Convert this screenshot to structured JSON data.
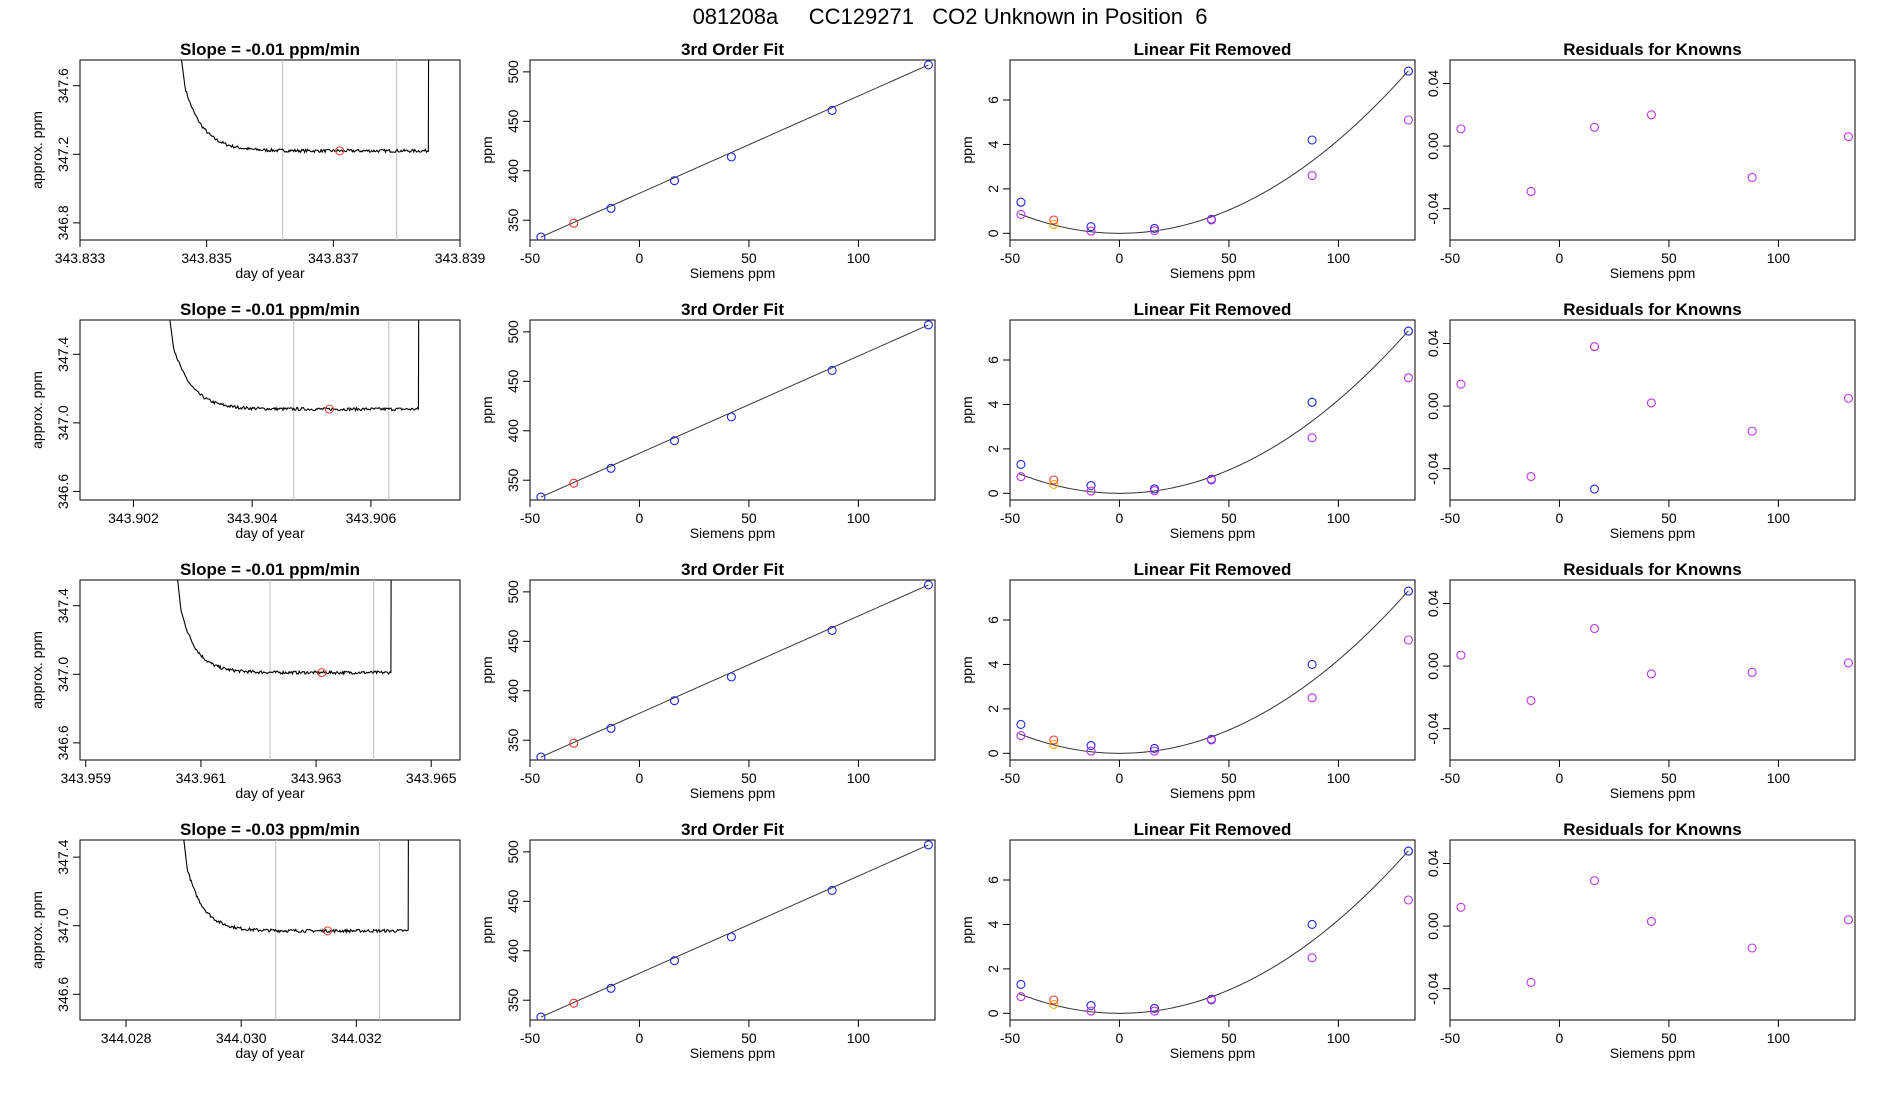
{
  "title": "081208a     CC129271   CO2 Unknown in Position  6",
  "colors": {
    "trace": "#000000",
    "axis": "#000000",
    "vline": "#bebebe",
    "red": "#e8392a",
    "orange": "#ffa500",
    "blue": "#2222dd",
    "magenta": "#bb33ee",
    "fit": "#333333"
  },
  "chart_data": [
    {
      "type": "line",
      "panel": "trace",
      "row": 1,
      "title": "Slope =  -0.01  ppm/min",
      "xlabel": "day of year",
      "ylabel": "approx. ppm",
      "xlim": [
        343.833,
        343.839
      ],
      "ylim": [
        346.7,
        347.75
      ],
      "xticks": [
        "343.833",
        "343.835",
        "343.837",
        "343.839"
      ],
      "yticks": [
        "346.8",
        "347.2",
        "347.6"
      ],
      "plateau": 347.22,
      "x_start": 343.8345,
      "x_rise": 343.8385,
      "vlines": [
        343.8362,
        343.838
      ],
      "mean_point": [
        343.8371,
        347.22
      ]
    },
    {
      "type": "line",
      "panel": "fit",
      "row": 1,
      "title": "3rd Order Fit",
      "xlabel": "Siemens ppm",
      "ylabel": "ppm",
      "xlim": [
        -50,
        135
      ],
      "ylim": [
        330,
        512
      ],
      "xticks": [
        -50,
        0,
        50,
        100
      ],
      "yticks": [
        350,
        400,
        450,
        500
      ],
      "points": [
        [
          -45,
          333,
          "blue"
        ],
        [
          -30,
          347,
          "red"
        ],
        [
          -13,
          362,
          "blue"
        ],
        [
          16,
          390,
          "blue"
        ],
        [
          42,
          414,
          "blue"
        ],
        [
          88,
          461,
          "blue"
        ],
        [
          132,
          507,
          "blue"
        ]
      ]
    },
    {
      "type": "scatter",
      "panel": "linrem",
      "row": 1,
      "title": "Linear Fit Removed",
      "xlabel": "Siemens ppm",
      "ylabel": "ppm",
      "xlim": [
        -50,
        135
      ],
      "ylim": [
        -0.3,
        7.8
      ],
      "xticks": [
        -50,
        0,
        50,
        100
      ],
      "yticks": [
        0,
        2,
        4,
        6
      ],
      "points": [
        [
          -45,
          1.4,
          "blue"
        ],
        [
          -45,
          0.85,
          "magenta"
        ],
        [
          -30,
          0.6,
          "red"
        ],
        [
          -30,
          0.4,
          "orange"
        ],
        [
          -13,
          0.3,
          "blue"
        ],
        [
          -13,
          0.1,
          "magenta"
        ],
        [
          16,
          0.22,
          "blue"
        ],
        [
          16,
          0.12,
          "magenta"
        ],
        [
          42,
          0.63,
          "blue"
        ],
        [
          42,
          0.6,
          "magenta"
        ],
        [
          88,
          4.2,
          "blue"
        ],
        [
          88,
          2.6,
          "magenta"
        ],
        [
          132,
          7.3,
          "blue"
        ],
        [
          132,
          5.1,
          "magenta"
        ]
      ],
      "curve_coef": 0.00042
    },
    {
      "type": "scatter",
      "panel": "resid",
      "row": 1,
      "title": "Residuals for Knowns",
      "xlabel": "Siemens ppm",
      "ylabel": "",
      "xlim": [
        -50,
        135
      ],
      "ylim": [
        -0.06,
        0.055
      ],
      "xticks": [
        -50,
        0,
        50,
        100
      ],
      "yticks": [
        "-0.04",
        "0.00",
        "0.04"
      ],
      "points": [
        [
          -45,
          0.011,
          "magenta"
        ],
        [
          -13,
          -0.029,
          "magenta"
        ],
        [
          16,
          0.012,
          "magenta"
        ],
        [
          42,
          0.02,
          "magenta"
        ],
        [
          88,
          -0.02,
          "magenta"
        ],
        [
          132,
          0.006,
          "magenta"
        ]
      ]
    },
    {
      "type": "line",
      "panel": "trace",
      "row": 2,
      "title": "Slope =  -0.01  ppm/min",
      "xlabel": "day of year",
      "ylabel": "approx. ppm",
      "xlim": [
        343.9011,
        343.9075
      ],
      "ylim": [
        346.55,
        347.6
      ],
      "xticks": [
        "343.902",
        "343.904",
        "343.906"
      ],
      "yticks": [
        "346.6",
        "347.0",
        "347.4"
      ],
      "plateau": 347.08,
      "x_start": 343.9025,
      "x_rise": 343.9068,
      "vlines": [
        343.9047,
        343.9063
      ],
      "mean_point": [
        343.9053,
        347.08
      ]
    },
    {
      "type": "line",
      "panel": "fit",
      "row": 2,
      "title": "3rd Order Fit",
      "xlabel": "Siemens ppm",
      "ylabel": "ppm",
      "xlim": [
        -50,
        135
      ],
      "ylim": [
        330,
        512
      ],
      "xticks": [
        -50,
        0,
        50,
        100
      ],
      "yticks": [
        350,
        400,
        450,
        500
      ],
      "points": [
        [
          -45,
          333,
          "blue"
        ],
        [
          -30,
          347,
          "red"
        ],
        [
          -13,
          362,
          "blue"
        ],
        [
          16,
          390,
          "blue"
        ],
        [
          42,
          414,
          "blue"
        ],
        [
          88,
          461,
          "blue"
        ],
        [
          132,
          507,
          "blue"
        ]
      ]
    },
    {
      "type": "scatter",
      "panel": "linrem",
      "row": 2,
      "title": "Linear Fit Removed",
      "xlabel": "Siemens ppm",
      "ylabel": "ppm",
      "xlim": [
        -50,
        135
      ],
      "ylim": [
        -0.3,
        7.8
      ],
      "xticks": [
        -50,
        0,
        50,
        100
      ],
      "yticks": [
        0,
        2,
        4,
        6
      ],
      "points": [
        [
          -45,
          1.3,
          "blue"
        ],
        [
          -45,
          0.75,
          "magenta"
        ],
        [
          -30,
          0.6,
          "red"
        ],
        [
          -30,
          0.4,
          "orange"
        ],
        [
          -13,
          0.35,
          "blue"
        ],
        [
          -13,
          0.1,
          "magenta"
        ],
        [
          16,
          0.2,
          "blue"
        ],
        [
          16,
          0.12,
          "magenta"
        ],
        [
          42,
          0.63,
          "blue"
        ],
        [
          42,
          0.6,
          "magenta"
        ],
        [
          88,
          4.1,
          "blue"
        ],
        [
          88,
          2.5,
          "magenta"
        ],
        [
          132,
          7.3,
          "blue"
        ],
        [
          132,
          5.2,
          "magenta"
        ]
      ],
      "curve_coef": 0.00042
    },
    {
      "type": "scatter",
      "panel": "resid",
      "row": 2,
      "title": "Residuals for Knowns",
      "xlabel": "Siemens ppm",
      "ylabel": "",
      "xlim": [
        -50,
        135
      ],
      "ylim": [
        -0.06,
        0.055
      ],
      "xticks": [
        -50,
        0,
        50,
        100
      ],
      "yticks": [
        "-0.04",
        "0.00",
        "0.04"
      ],
      "points": [
        [
          -45,
          0.014,
          "magenta"
        ],
        [
          -13,
          -0.045,
          "magenta"
        ],
        [
          16,
          0.038,
          "magenta"
        ],
        [
          16,
          -0.053,
          "blue"
        ],
        [
          42,
          0.002,
          "magenta"
        ],
        [
          88,
          -0.016,
          "magenta"
        ],
        [
          132,
          0.005,
          "magenta"
        ]
      ]
    },
    {
      "type": "line",
      "panel": "trace",
      "row": 3,
      "title": "Slope =  -0.01  ppm/min",
      "xlabel": "day of year",
      "ylabel": "approx. ppm",
      "xlim": [
        343.9589,
        343.9655
      ],
      "ylim": [
        346.5,
        347.55
      ],
      "xticks": [
        "343.959",
        "343.961",
        "343.963",
        "343.965"
      ],
      "yticks": [
        "346.6",
        "347.0",
        "347.4"
      ],
      "plateau": 347.01,
      "x_start": 343.9605,
      "x_rise": 343.9643,
      "vlines": [
        343.9622,
        343.964
      ],
      "mean_point": [
        343.9631,
        347.01
      ]
    },
    {
      "type": "line",
      "panel": "fit",
      "row": 3,
      "title": "3rd Order Fit",
      "xlabel": "Siemens ppm",
      "ylabel": "ppm",
      "xlim": [
        -50,
        135
      ],
      "ylim": [
        330,
        512
      ],
      "xticks": [
        -50,
        0,
        50,
        100
      ],
      "yticks": [
        350,
        400,
        450,
        500
      ],
      "points": [
        [
          -45,
          333,
          "blue"
        ],
        [
          -30,
          347,
          "red"
        ],
        [
          -13,
          362,
          "blue"
        ],
        [
          16,
          390,
          "blue"
        ],
        [
          42,
          414,
          "blue"
        ],
        [
          88,
          461,
          "blue"
        ],
        [
          132,
          507,
          "blue"
        ]
      ]
    },
    {
      "type": "scatter",
      "panel": "linrem",
      "row": 3,
      "title": "Linear Fit Removed",
      "xlabel": "Siemens ppm",
      "ylabel": "ppm",
      "xlim": [
        -50,
        135
      ],
      "ylim": [
        -0.3,
        7.8
      ],
      "xticks": [
        -50,
        0,
        50,
        100
      ],
      "yticks": [
        0,
        2,
        4,
        6
      ],
      "points": [
        [
          -45,
          1.3,
          "blue"
        ],
        [
          -45,
          0.8,
          "magenta"
        ],
        [
          -30,
          0.6,
          "red"
        ],
        [
          -30,
          0.4,
          "orange"
        ],
        [
          -13,
          0.35,
          "blue"
        ],
        [
          -13,
          0.1,
          "magenta"
        ],
        [
          16,
          0.22,
          "blue"
        ],
        [
          16,
          0.1,
          "magenta"
        ],
        [
          42,
          0.63,
          "blue"
        ],
        [
          42,
          0.6,
          "magenta"
        ],
        [
          88,
          4.0,
          "blue"
        ],
        [
          88,
          2.5,
          "magenta"
        ],
        [
          132,
          7.3,
          "blue"
        ],
        [
          132,
          5.1,
          "magenta"
        ]
      ],
      "curve_coef": 0.00042
    },
    {
      "type": "scatter",
      "panel": "resid",
      "row": 3,
      "title": "Residuals for Knowns",
      "xlabel": "Siemens ppm",
      "ylabel": "",
      "xlim": [
        -50,
        135
      ],
      "ylim": [
        -0.06,
        0.055
      ],
      "xticks": [
        -50,
        0,
        50,
        100
      ],
      "yticks": [
        "-0.04",
        "0.00",
        "0.04"
      ],
      "points": [
        [
          -45,
          0.007,
          "magenta"
        ],
        [
          -13,
          -0.022,
          "magenta"
        ],
        [
          16,
          0.024,
          "magenta"
        ],
        [
          42,
          -0.005,
          "magenta"
        ],
        [
          88,
          -0.004,
          "magenta"
        ],
        [
          132,
          0.002,
          "magenta"
        ]
      ]
    },
    {
      "type": "line",
      "panel": "trace",
      "row": 4,
      "title": "Slope =  -0.03  ppm/min",
      "xlabel": "day of year",
      "ylabel": "approx. ppm",
      "xlim": [
        344.0272,
        344.0338
      ],
      "ylim": [
        346.45,
        347.5
      ],
      "xticks": [
        "344.028",
        "344.030",
        "344.032"
      ],
      "yticks": [
        "346.6",
        "347.0",
        "347.4"
      ],
      "plateau": 346.97,
      "x_start": 344.0289,
      "x_rise": 344.0329,
      "vlines": [
        344.0306,
        344.0324
      ],
      "mean_point": [
        344.0315,
        346.97
      ]
    },
    {
      "type": "line",
      "panel": "fit",
      "row": 4,
      "title": "3rd Order Fit",
      "xlabel": "Siemens ppm",
      "ylabel": "ppm",
      "xlim": [
        -50,
        135
      ],
      "ylim": [
        330,
        512
      ],
      "xticks": [
        -50,
        0,
        50,
        100
      ],
      "yticks": [
        350,
        400,
        450,
        500
      ],
      "points": [
        [
          -45,
          333,
          "blue"
        ],
        [
          -30,
          347,
          "red"
        ],
        [
          -13,
          362,
          "blue"
        ],
        [
          16,
          390,
          "blue"
        ],
        [
          42,
          414,
          "blue"
        ],
        [
          88,
          461,
          "blue"
        ],
        [
          132,
          507,
          "blue"
        ]
      ]
    },
    {
      "type": "scatter",
      "panel": "linrem",
      "row": 4,
      "title": "Linear Fit Removed",
      "xlabel": "Siemens ppm",
      "ylabel": "ppm",
      "xlim": [
        -50,
        135
      ],
      "ylim": [
        -0.3,
        7.8
      ],
      "xticks": [
        -50,
        0,
        50,
        100
      ],
      "yticks": [
        0,
        2,
        4,
        6
      ],
      "points": [
        [
          -45,
          1.3,
          "blue"
        ],
        [
          -45,
          0.75,
          "magenta"
        ],
        [
          -30,
          0.6,
          "red"
        ],
        [
          -30,
          0.4,
          "orange"
        ],
        [
          -13,
          0.35,
          "blue"
        ],
        [
          -13,
          0.1,
          "magenta"
        ],
        [
          16,
          0.22,
          "blue"
        ],
        [
          16,
          0.1,
          "magenta"
        ],
        [
          42,
          0.63,
          "blue"
        ],
        [
          42,
          0.6,
          "magenta"
        ],
        [
          88,
          4.0,
          "blue"
        ],
        [
          88,
          2.5,
          "magenta"
        ],
        [
          132,
          7.3,
          "blue"
        ],
        [
          132,
          5.1,
          "magenta"
        ]
      ],
      "curve_coef": 0.00042
    },
    {
      "type": "scatter",
      "panel": "resid",
      "row": 4,
      "title": "Residuals for Knowns",
      "xlabel": "Siemens ppm",
      "ylabel": "",
      "xlim": [
        -50,
        135
      ],
      "ylim": [
        -0.06,
        0.055
      ],
      "xticks": [
        -50,
        0,
        50,
        100
      ],
      "yticks": [
        "-0.04",
        "0.00",
        "0.04"
      ],
      "points": [
        [
          -45,
          0.012,
          "magenta"
        ],
        [
          -13,
          -0.036,
          "magenta"
        ],
        [
          16,
          0.029,
          "magenta"
        ],
        [
          42,
          0.003,
          "magenta"
        ],
        [
          88,
          -0.014,
          "magenta"
        ],
        [
          132,
          0.004,
          "magenta"
        ]
      ]
    }
  ]
}
